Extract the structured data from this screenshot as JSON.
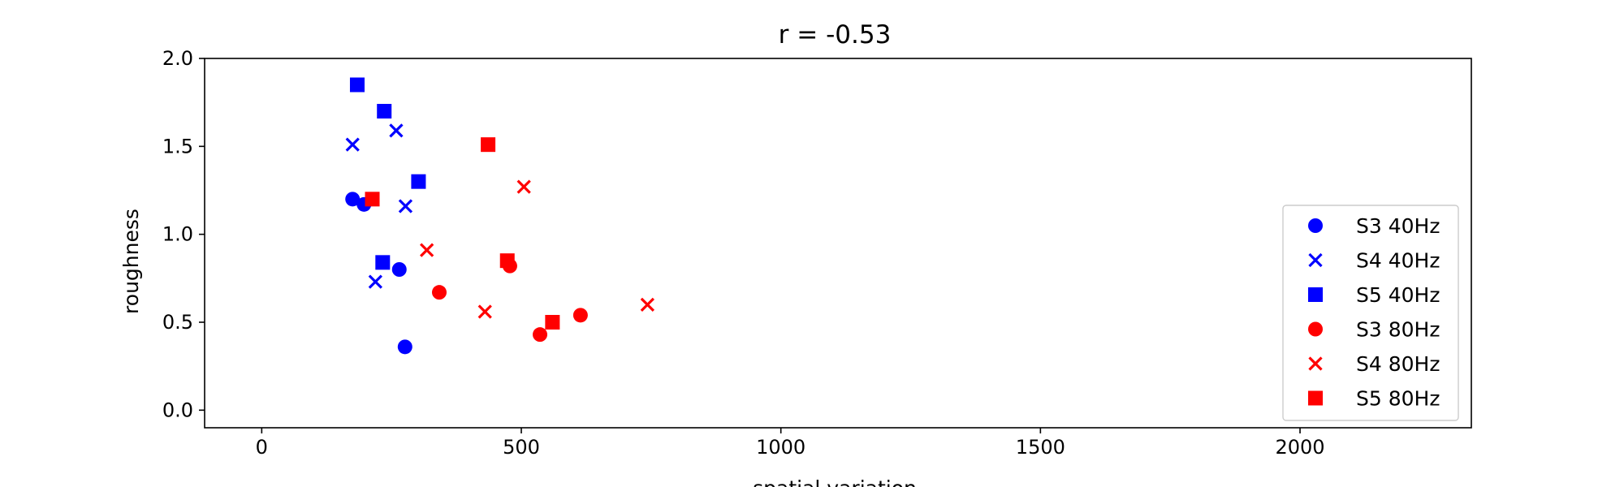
{
  "chart_data": {
    "type": "scatter",
    "title": "r = -0.53",
    "xlabel": "spatial variation",
    "ylabel": "roughness",
    "xlim": [
      -110,
      2330
    ],
    "ylim": [
      -0.1,
      2.0
    ],
    "xticks": [
      0,
      500,
      1000,
      1500,
      2000
    ],
    "xtick_labels": [
      "0",
      "500",
      "1000",
      "1500",
      "2000"
    ],
    "yticks": [
      0.0,
      0.5,
      1.0,
      1.5,
      2.0
    ],
    "ytick_labels": [
      "0.0",
      "0.5",
      "1.0",
      "1.5",
      "2.0"
    ],
    "grid": false,
    "legend_position": "lower-right",
    "series": [
      {
        "name": "S3 40Hz",
        "color": "#0000ff",
        "marker": "circle",
        "points": [
          {
            "x": 175,
            "y": 1.2
          },
          {
            "x": 197,
            "y": 1.17
          },
          {
            "x": 265,
            "y": 0.8
          },
          {
            "x": 276,
            "y": 0.36
          }
        ]
      },
      {
        "name": "S4 40Hz",
        "color": "#0000ff",
        "marker": "x",
        "points": [
          {
            "x": 175,
            "y": 1.51
          },
          {
            "x": 259,
            "y": 1.59
          },
          {
            "x": 277,
            "y": 1.16
          },
          {
            "x": 219,
            "y": 0.73
          }
        ]
      },
      {
        "name": "S5 40Hz",
        "color": "#0000ff",
        "marker": "square",
        "points": [
          {
            "x": 184,
            "y": 1.85
          },
          {
            "x": 236,
            "y": 1.7
          },
          {
            "x": 302,
            "y": 1.3
          },
          {
            "x": 233,
            "y": 0.84
          }
        ]
      },
      {
        "name": "S3 80Hz",
        "color": "#ff0000",
        "marker": "circle",
        "points": [
          {
            "x": 342,
            "y": 0.67
          },
          {
            "x": 478,
            "y": 0.82
          },
          {
            "x": 536,
            "y": 0.43
          },
          {
            "x": 614,
            "y": 0.54
          }
        ]
      },
      {
        "name": "S4 80Hz",
        "color": "#ff0000",
        "marker": "x",
        "points": [
          {
            "x": 318,
            "y": 0.91
          },
          {
            "x": 430,
            "y": 0.56
          },
          {
            "x": 505,
            "y": 1.27
          },
          {
            "x": 743,
            "y": 0.6
          }
        ]
      },
      {
        "name": "S5 80Hz",
        "color": "#ff0000",
        "marker": "square",
        "points": [
          {
            "x": 213,
            "y": 1.2
          },
          {
            "x": 436,
            "y": 1.51
          },
          {
            "x": 473,
            "y": 0.85
          },
          {
            "x": 560,
            "y": 0.5
          }
        ]
      }
    ]
  }
}
